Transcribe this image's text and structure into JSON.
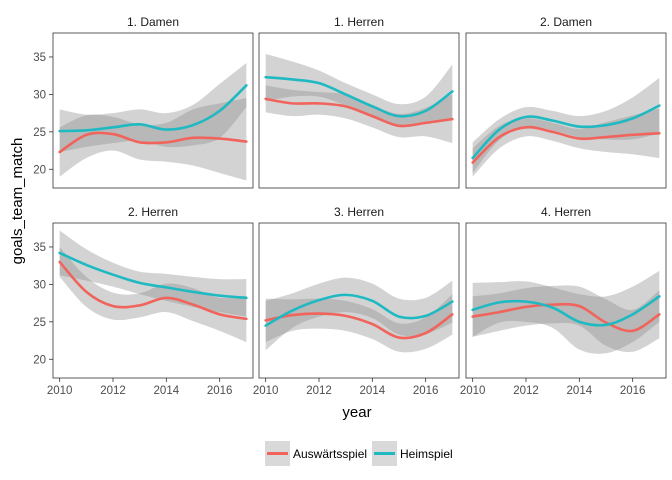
{
  "chart_data": {
    "type": "line",
    "xlabel": "year",
    "ylabel": "goals_team_match",
    "xlim": [
      2009.75,
      2017.25
    ],
    "ylim": [
      17.5,
      38.2
    ],
    "x_ticks": [
      2010,
      2012,
      2014,
      2016
    ],
    "x_tick_labels": [
      "2010",
      "2012",
      "2014",
      "2016"
    ],
    "y_ticks": [
      20,
      25,
      30,
      35
    ],
    "y_tick_labels": [
      "20",
      "25",
      "30",
      "35"
    ],
    "legend": {
      "position": "bottom",
      "entries": [
        "Auswärtsspiel",
        "Heimspiel"
      ]
    },
    "colors": {
      "Auswärtsspiel": "#f0645c",
      "Heimspiel": "#1fb9c2",
      "ribbon": "#bdbdbd"
    },
    "x": [
      2010,
      2011,
      2012,
      2013,
      2014,
      2015,
      2016,
      2017
    ],
    "panels": [
      {
        "title": "1. Damen",
        "series": [
          {
            "name": "Auswärtsspiel",
            "values": [
              22.3,
              24.6,
              24.7,
              23.6,
              23.6,
              24.2,
              24.1,
              23.7
            ],
            "lower": [
              19.0,
              21.5,
              22.5,
              21.3,
              21.0,
              20.5,
              19.5,
              18.5
            ],
            "upper": [
              25.6,
              27.2,
              27.0,
              26.0,
              26.2,
              28.0,
              28.8,
              29.5
            ]
          },
          {
            "name": "Heimspiel",
            "values": [
              25.1,
              25.2,
              25.6,
              26.0,
              25.3,
              25.9,
              27.8,
              31.2
            ],
            "lower": [
              22.3,
              23.0,
              23.5,
              23.8,
              23.0,
              23.2,
              24.2,
              28.3
            ],
            "upper": [
              28.0,
              27.3,
              27.5,
              28.0,
              27.5,
              28.6,
              31.4,
              34.2
            ]
          }
        ]
      },
      {
        "title": "1. Herren",
        "series": [
          {
            "name": "Auswärtsspiel",
            "values": [
              29.4,
              28.8,
              28.8,
              28.4,
              27.1,
              25.8,
              26.2,
              26.7
            ],
            "lower": [
              27.6,
              27.1,
              27.3,
              26.8,
              25.6,
              24.3,
              24.4,
              23.5
            ],
            "upper": [
              31.2,
              30.6,
              30.3,
              30.0,
              28.6,
              27.4,
              28.2,
              30.0
            ]
          },
          {
            "name": "Heimspiel",
            "values": [
              32.3,
              32.0,
              31.5,
              30.0,
              28.4,
              27.1,
              27.8,
              30.4
            ],
            "lower": [
              29.1,
              29.7,
              29.7,
              28.5,
              26.9,
              25.7,
              26.1,
              26.8
            ],
            "upper": [
              35.4,
              34.4,
              33.2,
              31.5,
              30.0,
              28.7,
              29.7,
              34.0
            ]
          }
        ]
      },
      {
        "title": "2. Damen",
        "series": [
          {
            "name": "Auswärtsspiel",
            "values": [
              20.9,
              24.3,
              25.6,
              25.0,
              24.1,
              24.3,
              24.6,
              24.8
            ],
            "lower": [
              19.0,
              22.8,
              24.4,
              23.8,
              22.8,
              22.3,
              22.0,
              21.5
            ],
            "upper": [
              22.8,
              25.8,
              26.8,
              26.2,
              25.4,
              26.3,
              27.2,
              28.1
            ]
          },
          {
            "name": "Heimspiel",
            "values": [
              21.5,
              25.3,
              27.0,
              26.5,
              25.7,
              25.9,
              26.8,
              28.5
            ],
            "lower": [
              19.5,
              23.9,
              25.7,
              25.2,
              24.3,
              24.0,
              24.0,
              24.8
            ],
            "upper": [
              23.6,
              26.7,
              28.3,
              27.8,
              27.1,
              27.8,
              29.6,
              32.2
            ]
          }
        ]
      },
      {
        "title": "2. Herren",
        "series": [
          {
            "name": "Auswärtsspiel",
            "values": [
              33.0,
              29.0,
              27.1,
              27.2,
              28.2,
              27.3,
              26.0,
              25.4
            ],
            "lower": [
              31.0,
              27.0,
              25.3,
              25.6,
              26.3,
              25.1,
              23.8,
              22.3
            ],
            "upper": [
              35.0,
              31.0,
              28.9,
              28.8,
              30.1,
              29.5,
              28.2,
              28.5
            ]
          },
          {
            "name": "Heimspiel",
            "values": [
              34.2,
              32.6,
              31.3,
              30.2,
              29.6,
              29.0,
              28.5,
              28.2
            ],
            "lower": [
              31.2,
              30.5,
              29.7,
              28.7,
              27.8,
              27.0,
              26.3,
              25.7
            ],
            "upper": [
              37.2,
              34.7,
              32.9,
              31.7,
              31.4,
              31.0,
              30.7,
              30.7
            ]
          }
        ]
      },
      {
        "title": "3. Herren",
        "series": [
          {
            "name": "Auswärtsspiel",
            "values": [
              25.2,
              25.9,
              26.1,
              25.8,
              24.7,
              22.9,
              23.5,
              26.0
            ],
            "lower": [
              22.3,
              23.8,
              24.1,
              23.8,
              22.7,
              21.0,
              21.4,
              23.3
            ],
            "upper": [
              28.1,
              28.0,
              28.1,
              27.8,
              26.7,
              24.8,
              25.6,
              28.7
            ]
          },
          {
            "name": "Heimspiel",
            "values": [
              24.5,
              26.5,
              27.9,
              28.6,
              27.8,
              25.7,
              25.8,
              27.7
            ],
            "lower": [
              21.2,
              24.2,
              25.7,
              26.3,
              25.5,
              23.3,
              23.4,
              24.9
            ],
            "upper": [
              27.8,
              28.8,
              30.1,
              30.9,
              30.1,
              28.1,
              28.2,
              30.5
            ]
          }
        ]
      },
      {
        "title": "4. Herren",
        "series": [
          {
            "name": "Auswärtsspiel",
            "values": [
              25.7,
              26.3,
              27.0,
              27.3,
              27.1,
              24.9,
              23.8,
              26.0
            ],
            "lower": [
              23.0,
              23.8,
              24.5,
              24.8,
              24.5,
              21.8,
              21.0,
              22.8
            ],
            "upper": [
              28.4,
              28.8,
              29.5,
              29.8,
              29.7,
              28.0,
              26.6,
              29.2
            ]
          },
          {
            "name": "Heimspiel",
            "values": [
              26.6,
              27.6,
              27.7,
              26.9,
              25.0,
              24.6,
              26.0,
              28.4
            ],
            "lower": [
              23.0,
              24.9,
              25.0,
              24.2,
              21.3,
              20.8,
              22.3,
              25.0
            ],
            "upper": [
              30.2,
              30.3,
              30.4,
              29.6,
              28.7,
              28.4,
              29.7,
              31.8
            ]
          }
        ]
      }
    ]
  }
}
